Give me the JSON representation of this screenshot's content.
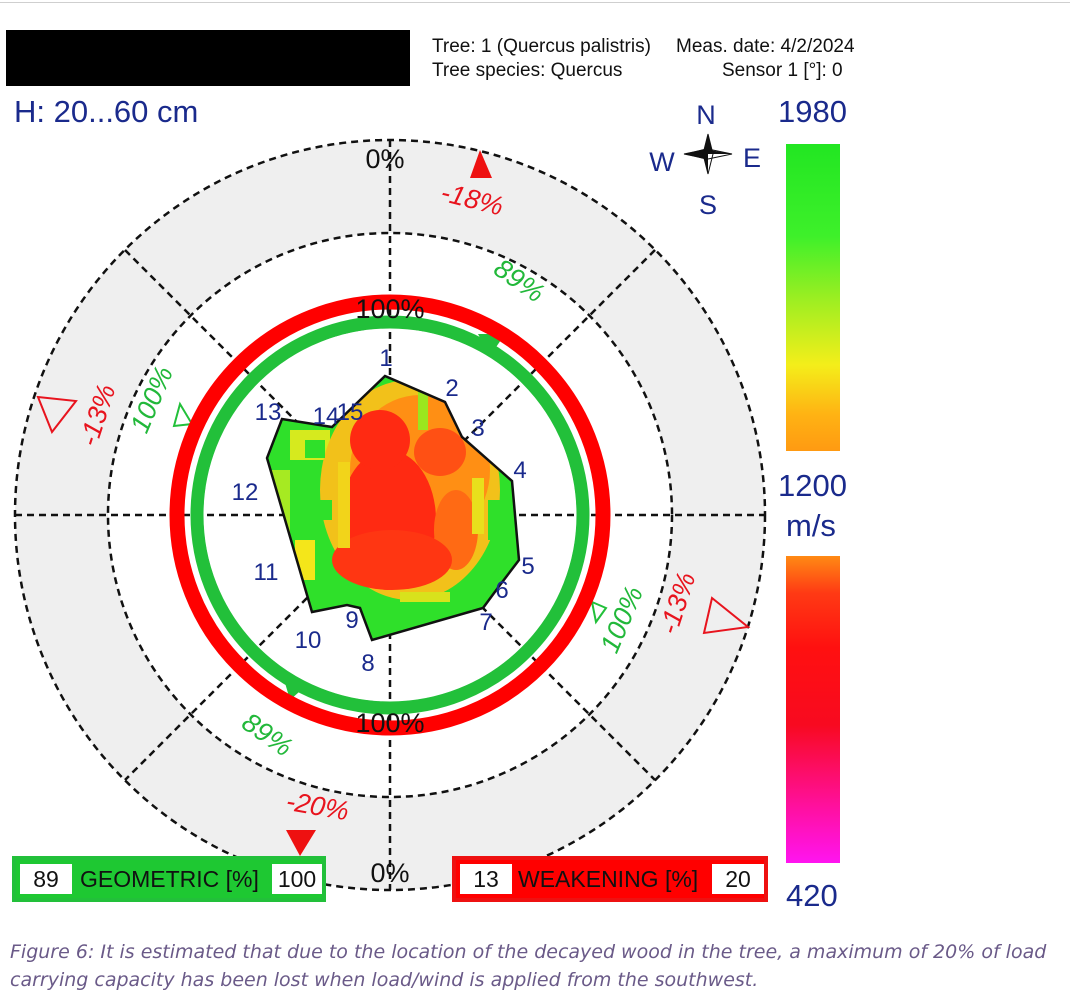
{
  "header": {
    "tree": "Tree: 1 (Quercus palistris)",
    "meas_date": "Meas. date: 4/2/2024",
    "species": "Tree species: Quercus",
    "sensor": "Sensor 1 [°]: 0"
  },
  "height_label": "H: 20...60 cm",
  "compass": {
    "n": "N",
    "s": "S",
    "e": "E",
    "w": "W"
  },
  "scale": {
    "top": "1980",
    "mid": "1200",
    "unit": "m/s",
    "bottom": "420"
  },
  "ring_labels": {
    "zero_top": "0%",
    "zero_bottom": "0%",
    "hundred_top": "100%",
    "hundred_bottom": "100%",
    "hundred_left": "100%",
    "hundred_right": "100%",
    "geo_ne": "89%",
    "geo_sw": "89%",
    "weak_n": "-18%",
    "weak_w": "-13%",
    "weak_e": "-13%",
    "weak_s": "-20%"
  },
  "sensors": [
    "1",
    "2",
    "3",
    "4",
    "5",
    "6",
    "7",
    "8",
    "9",
    "10",
    "11",
    "12",
    "13",
    "14",
    "15"
  ],
  "geometric": {
    "min": "89",
    "label": "GEOMETRIC [%]",
    "max": "100"
  },
  "weakening": {
    "min": "13",
    "label": "WEAKENING [%]",
    "max": "20"
  },
  "colors": {
    "geometric": "#22c03a",
    "weakening": "#ff0000",
    "text_blue": "#1a2a8c",
    "label_red": "#e8141e"
  },
  "caption": "Figure 6: It is estimated that due to the location of the decayed wood in the tree, a maximum of 20% of load carrying capacity has been lost when load/wind is applied from the southwest."
}
